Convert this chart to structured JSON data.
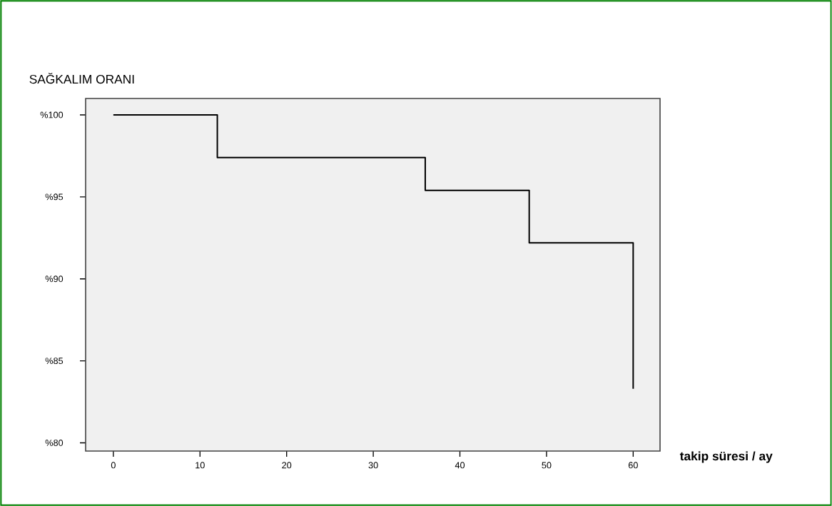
{
  "chart_data": {
    "type": "step",
    "ylabel": "SAĞKALIM ORANI",
    "xlabel": "takip süresi / ay",
    "x": [
      0,
      12,
      36,
      48,
      60
    ],
    "series": [
      {
        "color": "#000000",
        "values": [
          100,
          97.4,
          95.4,
          92.2,
          83.3
        ]
      }
    ],
    "xlim": [
      -3.2,
      63.1
    ],
    "ylim": [
      79.5,
      101
    ],
    "xticks": [
      0,
      10,
      20,
      30,
      40,
      50,
      60
    ],
    "yticks": [
      {
        "value": 80,
        "label": "%80"
      },
      {
        "value": 85,
        "label": "%85"
      },
      {
        "value": 90,
        "label": "%90"
      },
      {
        "value": 95,
        "label": "%95"
      },
      {
        "value": 100,
        "label": "%100"
      }
    ]
  }
}
